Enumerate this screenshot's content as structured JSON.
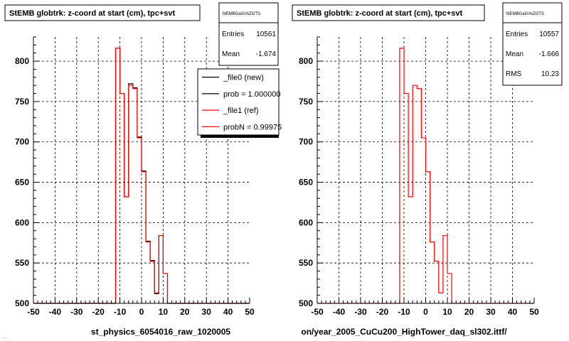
{
  "panels": [
    {
      "title": "StEMB globtrk: z-coord at start (cm), tpc+svt",
      "filename": "st_physics_6054016_raw_1020005",
      "stats": {
        "name": "StEMBGaGrlnZOTS",
        "rows": [
          {
            "label": "Entries",
            "value": "10561"
          },
          {
            "label": "Mean",
            "value": "-1.674"
          }
        ]
      },
      "legend": [
        {
          "label": "_file0 (new)",
          "color": "#000000"
        },
        {
          "label": "prob = 1.000000",
          "color": "#000000"
        },
        {
          "label": "_file1 (ref)",
          "color": "#ff0000"
        },
        {
          "label": "probN = 0.99975",
          "color": "#ff0000"
        }
      ]
    },
    {
      "title": "StEMB globtrk: z-coord at start (cm), tpc+svt",
      "filename": "on/year_2005_CuCu200_HighTower_daq_sl302.ittf/",
      "stats": {
        "name": "StEMBGaGrlnZOTS",
        "rows": [
          {
            "label": "Entries",
            "value": "10557"
          },
          {
            "label": "Mean",
            "value": "-1.666"
          },
          {
            "label": "RMS",
            "value": "10.23"
          }
        ]
      }
    }
  ],
  "footer_text": "...",
  "colors": {
    "new": "#000000",
    "ref": "#ff0000"
  },
  "chart_data": [
    {
      "type": "step-histogram",
      "title": "StEMB globtrk: z-coord at start (cm), tpc+svt",
      "xlabel": "st_physics_6054016_raw_1020005",
      "xlim": [
        -50,
        50
      ],
      "ylim": [
        500,
        830
      ],
      "xticks": [
        -50,
        -40,
        -30,
        -20,
        -10,
        0,
        10,
        20,
        30,
        40,
        50
      ],
      "yticks": [
        500,
        550,
        600,
        650,
        700,
        750,
        800
      ],
      "grid": true,
      "bin_edges": [
        -12,
        -10,
        -8,
        -6,
        -4,
        -2,
        0,
        2,
        4,
        6,
        8,
        10,
        12
      ],
      "series": [
        {
          "name": "_file0 (new)",
          "color": "#000000",
          "values": [
            816,
            760,
            632,
            772,
            767,
            706,
            664,
            577,
            553,
            512,
            584,
            537
          ]
        },
        {
          "name": "_file1 (ref)",
          "color": "#ff0000",
          "values": [
            816,
            760,
            632,
            770,
            766,
            705,
            663,
            576,
            552,
            513,
            584,
            537
          ]
        }
      ]
    },
    {
      "type": "step-histogram",
      "title": "StEMB globtrk: z-coord at start (cm), tpc+svt",
      "xlabel": "on/year_2005_CuCu200_HighTower_daq_sl302.ittf/",
      "xlim": [
        -50,
        50
      ],
      "ylim": [
        500,
        830
      ],
      "xticks": [
        -50,
        -40,
        -30,
        -20,
        -10,
        0,
        10,
        20,
        30,
        40,
        50
      ],
      "yticks": [
        500,
        550,
        600,
        650,
        700,
        750,
        800
      ],
      "grid": true,
      "bin_edges": [
        -12,
        -10,
        -8,
        -6,
        -4,
        -2,
        0,
        2,
        4,
        6,
        8,
        10,
        12
      ],
      "series": [
        {
          "name": "_file1 (ref)",
          "color": "#ff0000",
          "values": [
            816,
            760,
            632,
            770,
            766,
            705,
            663,
            576,
            552,
            513,
            584,
            537
          ]
        }
      ]
    }
  ]
}
